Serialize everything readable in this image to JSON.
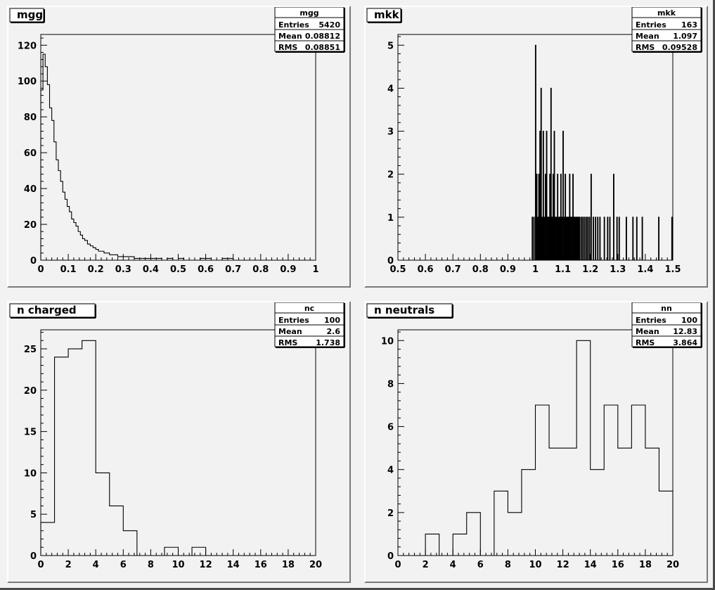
{
  "chart_data": [
    {
      "type": "bar",
      "title": "mgg",
      "stats": {
        "name": "mgg",
        "entries_label": "Entries",
        "entries": "5420",
        "mean_label": "Mean",
        "mean": "0.08812",
        "rms_label": "RMS",
        "rms": "0.08851"
      },
      "xlim": [
        0,
        1
      ],
      "ylim": [
        0,
        126
      ],
      "xticks": [
        0,
        0.1,
        0.2,
        0.3,
        0.4,
        0.5,
        0.6,
        0.7,
        0.8,
        0.9,
        1
      ],
      "xticklabels": [
        "0",
        "0.1",
        "0.2",
        "0.3",
        "0.4",
        "0.5",
        "0.6",
        "0.7",
        "0.8",
        "0.9",
        "1"
      ],
      "yticks": [
        0,
        20,
        40,
        60,
        80,
        100,
        120
      ],
      "yticklabels": [
        "0",
        "20",
        "40",
        "60",
        "80",
        "100",
        "120"
      ],
      "bin_width": 0.004,
      "bin_edges": [
        0,
        0.008,
        0.016,
        0.024,
        0.032,
        0.04,
        0.048,
        0.056,
        0.064,
        0.072,
        0.08,
        0.088,
        0.096,
        0.104,
        0.112,
        0.12,
        0.128,
        0.136,
        0.144,
        0.152,
        0.16,
        0.17,
        0.18,
        0.19,
        0.2,
        0.21,
        0.22,
        0.23,
        0.24,
        0.25,
        0.26,
        0.28,
        0.3,
        0.32,
        0.34,
        0.36,
        0.38,
        0.4,
        0.42,
        0.44,
        0.46,
        0.48,
        0.5,
        0.52,
        0.55,
        0.58,
        0.62,
        0.66,
        0.7,
        1.0
      ],
      "values": [
        95,
        115,
        108,
        98,
        85,
        78,
        66,
        56,
        50,
        44,
        38,
        34,
        30,
        27,
        23,
        21,
        19,
        16,
        14,
        12,
        11,
        9,
        8,
        7,
        6,
        5,
        5,
        4,
        4,
        3,
        3,
        2,
        2,
        2,
        1,
        1,
        1,
        1,
        1,
        0,
        1,
        0,
        1,
        0,
        0,
        1,
        0,
        1,
        0
      ]
    },
    {
      "type": "bar",
      "title": "mkk",
      "stats": {
        "name": "mkk",
        "entries_label": "Entries",
        "entries": "163",
        "mean_label": "Mean",
        "mean": "1.097",
        "rms_label": "RMS",
        "rms": "0.09528"
      },
      "xlim": [
        0.5,
        1.5
      ],
      "ylim": [
        0,
        5.25
      ],
      "xticks": [
        0.5,
        0.6,
        0.7,
        0.8,
        0.9,
        1,
        1.1,
        1.2,
        1.3,
        1.4,
        1.5
      ],
      "xticklabels": [
        "0.5",
        "0.6",
        "0.7",
        "0.8",
        "0.9",
        "1",
        "1.1",
        "1.2",
        "1.3",
        "1.4",
        "1.5"
      ],
      "yticks": [
        0,
        1,
        2,
        3,
        4,
        5
      ],
      "yticklabels": [
        "0",
        "1",
        "2",
        "3",
        "4",
        "5"
      ],
      "bin_width": 0.002,
      "bins_x": [
        0.988,
        0.994,
        1.0,
        1.004,
        1.008,
        1.012,
        1.016,
        1.02,
        1.024,
        1.028,
        1.032,
        1.036,
        1.04,
        1.044,
        1.048,
        1.052,
        1.056,
        1.06,
        1.064,
        1.068,
        1.072,
        1.076,
        1.08,
        1.084,
        1.088,
        1.092,
        1.096,
        1.1,
        1.104,
        1.108,
        1.112,
        1.116,
        1.12,
        1.124,
        1.128,
        1.132,
        1.136,
        1.14,
        1.144,
        1.148,
        1.152,
        1.156,
        1.16,
        1.166,
        1.172,
        1.178,
        1.184,
        1.19,
        1.196,
        1.202,
        1.21,
        1.218,
        1.226,
        1.234,
        1.25,
        1.262,
        1.27,
        1.284,
        1.296,
        1.304,
        1.33,
        1.354,
        1.368,
        1.388,
        1.448,
        1.496
      ],
      "values": [
        1,
        1,
        5,
        2,
        1,
        2,
        3,
        4,
        1,
        3,
        1,
        2,
        3,
        1,
        1,
        2,
        4,
        1,
        2,
        3,
        1,
        1,
        2,
        1,
        1,
        2,
        1,
        3,
        1,
        2,
        1,
        1,
        1,
        2,
        1,
        1,
        2,
        1,
        1,
        1,
        1,
        1,
        1,
        1,
        1,
        1,
        1,
        1,
        1,
        2,
        1,
        1,
        1,
        1,
        1,
        1,
        1,
        2,
        1,
        1,
        1,
        1,
        1,
        1,
        1,
        1
      ]
    },
    {
      "type": "bar",
      "title": "n charged",
      "stats": {
        "name": "nc",
        "entries_label": "Entries",
        "entries": "100",
        "mean_label": "Mean",
        "mean": "2.6",
        "rms_label": "RMS",
        "rms": "1.738"
      },
      "xlim": [
        0,
        20
      ],
      "ylim": [
        0,
        27.3
      ],
      "xticks": [
        0,
        2,
        4,
        6,
        8,
        10,
        12,
        14,
        16,
        18,
        20
      ],
      "xticklabels": [
        "0",
        "2",
        "4",
        "6",
        "8",
        "10",
        "12",
        "14",
        "16",
        "18",
        "20"
      ],
      "yticks": [
        0,
        5,
        10,
        15,
        20,
        25
      ],
      "yticklabels": [
        "0",
        "5",
        "10",
        "15",
        "20",
        "25"
      ],
      "bin_edges": [
        0,
        1,
        2,
        3,
        4,
        5,
        6,
        7,
        8,
        9,
        10,
        11,
        12,
        13,
        14,
        15,
        16,
        17,
        18,
        19,
        20
      ],
      "values": [
        4,
        24,
        25,
        26,
        10,
        6,
        3,
        0,
        0,
        1,
        0,
        1,
        0,
        0,
        0,
        0,
        0,
        0,
        0,
        0
      ]
    },
    {
      "type": "bar",
      "title": "n neutrals",
      "stats": {
        "name": "nn",
        "entries_label": "Entries",
        "entries": "100",
        "mean_label": "Mean",
        "mean": "12.83",
        "rms_label": "RMS",
        "rms": "3.864"
      },
      "xlim": [
        0,
        20
      ],
      "ylim": [
        0,
        10.5
      ],
      "xticks": [
        0,
        2,
        4,
        6,
        8,
        10,
        12,
        14,
        16,
        18,
        20
      ],
      "xticklabels": [
        "0",
        "2",
        "4",
        "6",
        "8",
        "10",
        "12",
        "14",
        "16",
        "18",
        "20"
      ],
      "yticks": [
        0,
        2,
        4,
        6,
        8,
        10
      ],
      "yticklabels": [
        "0",
        "2",
        "4",
        "6",
        "8",
        "10"
      ],
      "bin_edges": [
        0,
        1,
        2,
        3,
        4,
        5,
        6,
        7,
        8,
        9,
        10,
        11,
        12,
        13,
        14,
        15,
        16,
        17,
        18,
        19,
        20
      ],
      "values": [
        0,
        0,
        1,
        0,
        1,
        2,
        0,
        3,
        2,
        4,
        7,
        5,
        5,
        10,
        4,
        7,
        5,
        7,
        5,
        3
      ]
    }
  ]
}
